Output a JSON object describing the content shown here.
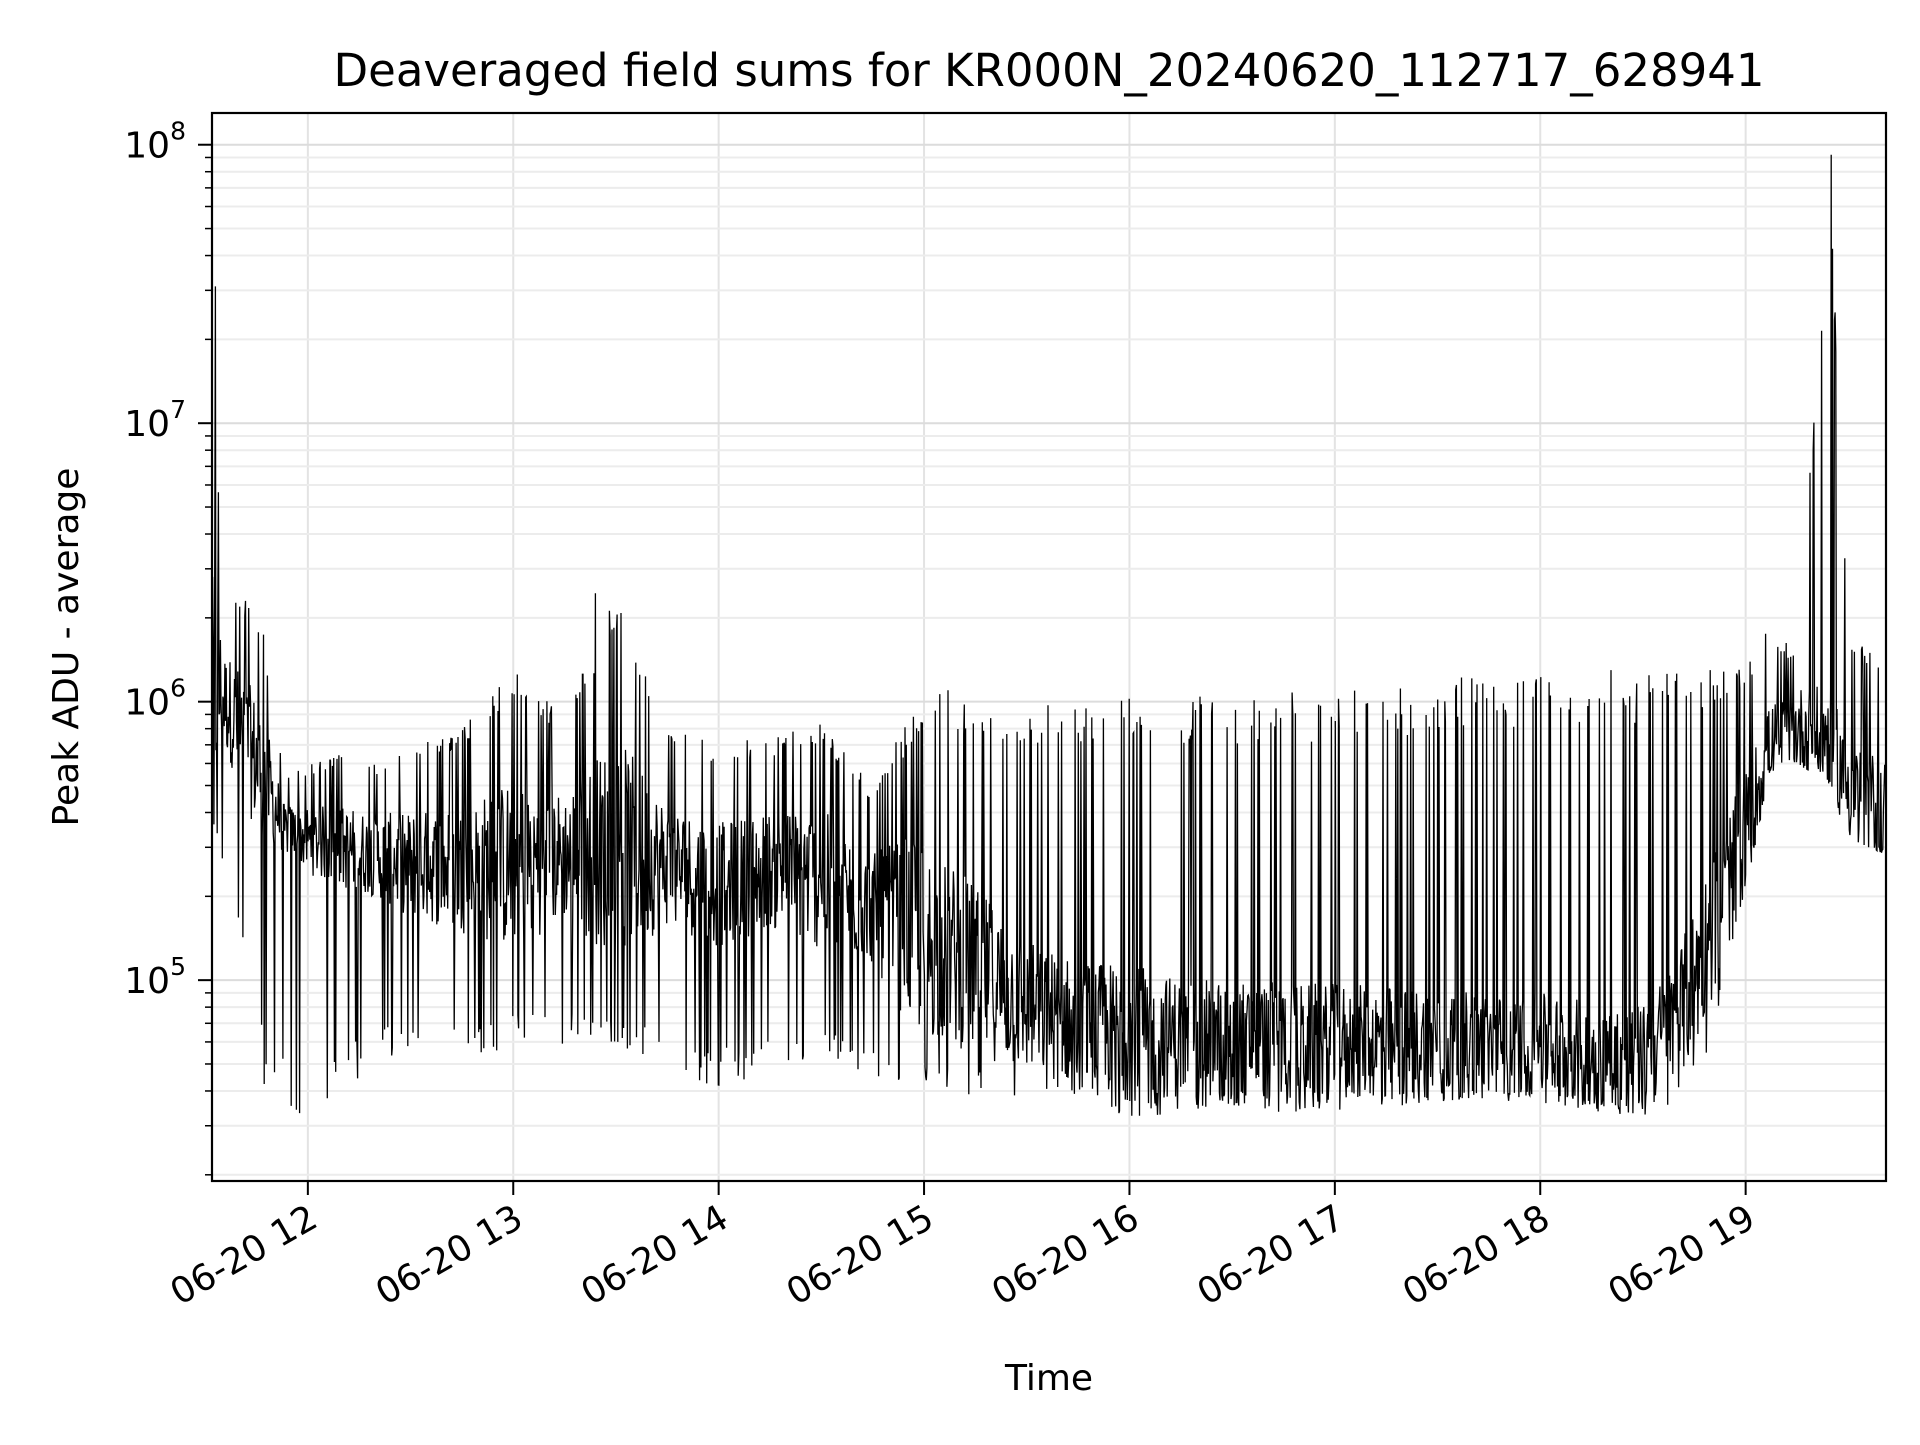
{
  "chart_data": {
    "type": "line",
    "title": "Deaveraged field sums for KR000N_20240620_112717_628941",
    "xlabel": "Time",
    "ylabel": "Peak ADU - average",
    "yscale": "log",
    "grid": true,
    "legend": "none",
    "xlim": [
      "2024-06-20 11:32",
      "2024-06-20 19:41"
    ],
    "ylim": [
      19000,
      130000000
    ],
    "x_ticks": [
      {
        "value": "2024-06-20 12:00",
        "label": "06-20 12"
      },
      {
        "value": "2024-06-20 13:00",
        "label": "06-20 13"
      },
      {
        "value": "2024-06-20 14:00",
        "label": "06-20 14"
      },
      {
        "value": "2024-06-20 15:00",
        "label": "06-20 15"
      },
      {
        "value": "2024-06-20 16:00",
        "label": "06-20 16"
      },
      {
        "value": "2024-06-20 17:00",
        "label": "06-20 17"
      },
      {
        "value": "2024-06-20 18:00",
        "label": "06-20 18"
      },
      {
        "value": "2024-06-20 19:00",
        "label": "06-20 19"
      }
    ],
    "y_ticks": [
      {
        "value": 100000,
        "base": "10",
        "exp": "5"
      },
      {
        "value": 1000000,
        "base": "10",
        "exp": "6"
      },
      {
        "value": 10000000,
        "base": "10",
        "exp": "7"
      },
      {
        "value": 100000000,
        "base": "10",
        "exp": "8"
      }
    ],
    "series": [
      {
        "color": "#000000",
        "x": [
          "2024-06-20 11:32",
          "2024-06-20 11:35",
          "2024-06-20 11:38",
          "2024-06-20 11:42",
          "2024-06-20 11:47",
          "2024-06-20 11:53",
          "2024-06-20 12:00",
          "2024-06-20 12:10",
          "2024-06-20 12:20",
          "2024-06-20 12:30",
          "2024-06-20 12:45",
          "2024-06-20 13:00",
          "2024-06-20 13:15",
          "2024-06-20 13:30",
          "2024-06-20 13:45",
          "2024-06-20 14:00",
          "2024-06-20 14:15",
          "2024-06-20 14:30",
          "2024-06-20 14:45",
          "2024-06-20 15:00",
          "2024-06-20 15:15",
          "2024-06-20 15:30",
          "2024-06-20 15:45",
          "2024-06-20 16:00",
          "2024-06-20 16:15",
          "2024-06-20 16:30",
          "2024-06-20 16:45",
          "2024-06-20 17:00",
          "2024-06-20 17:15",
          "2024-06-20 17:30",
          "2024-06-20 17:45",
          "2024-06-20 18:00",
          "2024-06-20 18:15",
          "2024-06-20 18:30",
          "2024-06-20 18:40",
          "2024-06-20 18:50",
          "2024-06-20 19:00",
          "2024-06-20 19:07",
          "2024-06-20 19:15",
          "2024-06-20 19:25",
          "2024-06-20 19:30",
          "2024-06-20 19:35",
          "2024-06-20 19:40"
        ],
        "y": [
          1200000,
          1050000,
          900000,
          700000,
          550000,
          350000,
          320000,
          300000,
          280000,
          260000,
          250000,
          260000,
          280000,
          300000,
          260000,
          220000,
          250000,
          230000,
          180000,
          140000,
          110000,
          80000,
          70000,
          65000,
          62000,
          62000,
          60000,
          60000,
          60000,
          60000,
          58000,
          58000,
          55000,
          52000,
          70000,
          150000,
          350000,
          700000,
          800000,
          750000,
          500000,
          450000,
          420000
        ],
        "y_min": [
          290000,
          250000,
          180000,
          100000,
          40000,
          34000,
          32000,
          40000,
          50000,
          52000,
          54000,
          55000,
          57000,
          60000,
          45000,
          40000,
          45000,
          50000,
          45000,
          38000,
          38000,
          38000,
          36000,
          30000,
          34000,
          35000,
          33000,
          34000,
          35000,
          36000,
          37000,
          36000,
          34000,
          32000,
          33000,
          60000,
          200000,
          560000,
          600000,
          500000,
          300000,
          300000,
          280000
        ],
        "y_max": [
          31000000,
          2500000,
          2500000,
          2400000,
          1800000,
          550000,
          600000,
          650000,
          600000,
          700000,
          800000,
          1300000,
          900000,
          2450000,
          800000,
          700000,
          750000,
          850000,
          500000,
          1100000,
          1000000,
          1000000,
          1050000,
          1050000,
          1050000,
          1050000,
          1100000,
          1100000,
          1150000,
          1200000,
          1250000,
          1300000,
          1300000,
          1300000,
          1300000,
          1300000,
          1400000,
          1850000,
          1500000,
          92000000,
          1700000,
          1600000,
          1600000
        ],
        "spikes": [
          {
            "x": "2024-06-20 11:33",
            "y": 31000000
          },
          {
            "x": "2024-06-20 13:24",
            "y": 2450000
          },
          {
            "x": "2024-06-20 15:07",
            "y": 1100000
          },
          {
            "x": "2024-06-20 19:25",
            "y": 92000000
          }
        ]
      }
    ]
  }
}
